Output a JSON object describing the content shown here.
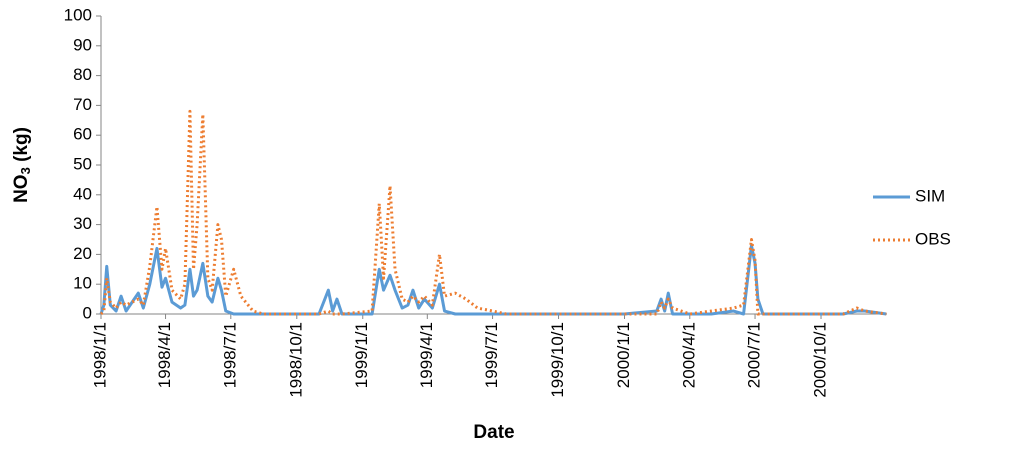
{
  "chart_data": {
    "type": "line",
    "y_label": [
      "NO",
      "3",
      " (kg)"
    ],
    "x_label": "Date",
    "x": [
      "1998/1/1",
      "1998/1/5",
      "1998/1/9",
      "1998/1/14",
      "1998/1/22",
      "1998/1/29",
      "1998/2/5",
      "1998/2/22",
      "1998/3/1",
      "1998/3/10",
      "1998/3/20",
      "1998/3/27",
      "1998/4/1",
      "1998/4/10",
      "1998/4/22",
      "1998/4/28",
      "1998/5/5",
      "1998/5/10",
      "1998/5/15",
      "1998/5/23",
      "1998/5/30",
      "1998/6/5",
      "1998/6/13",
      "1998/6/18",
      "1998/6/24",
      "1998/7/5",
      "1998/7/15",
      "1998/8/1",
      "1998/8/15",
      "1998/11/1",
      "1998/11/14",
      "1998/11/20",
      "1998/11/26",
      "1998/12/3",
      "1999/1/14",
      "1999/1/24",
      "1999/1/30",
      "1999/2/8",
      "1999/2/15",
      "1999/2/25",
      "1999/3/5",
      "1999/3/12",
      "1999/3/20",
      "1999/3/28",
      "1999/4/8",
      "1999/4/18",
      "1999/4/25",
      "1999/5/10",
      "1999/5/25",
      "1999/6/10",
      "1999/7/1",
      "1999/7/20",
      "2000/1/1",
      "2000/2/15",
      "2000/2/21",
      "2000/2/26",
      "2000/3/2",
      "2000/3/8",
      "2000/4/1",
      "2000/5/1",
      "2000/6/1",
      "2000/6/15",
      "2000/6/26",
      "2000/7/1",
      "2000/7/5",
      "2000/7/12",
      "2000/11/1",
      "2000/11/20",
      "2000/12/1",
      "2000/12/31"
    ],
    "series": [
      {
        "name": "SIM",
        "color": "#5b9bd5",
        "dash": "solid",
        "values": [
          0,
          3,
          16,
          3,
          1,
          6,
          1,
          7,
          2,
          10,
          22,
          9,
          12,
          4,
          2,
          3,
          15,
          6,
          8,
          17,
          6,
          4,
          12,
          8,
          1,
          0,
          0,
          0,
          0,
          0,
          8,
          1,
          5,
          0,
          0,
          15,
          8,
          13,
          8,
          2,
          3,
          8,
          2,
          5,
          2,
          10,
          1,
          0,
          0,
          0,
          0,
          0,
          0,
          1,
          5,
          1,
          7,
          0,
          0,
          0,
          1,
          0,
          23,
          17,
          5,
          0,
          0,
          1,
          1,
          0
        ]
      },
      {
        "name": "OBS",
        "color": "#ed7d31",
        "dash": "dotted",
        "values": [
          0,
          1,
          12,
          4,
          2,
          4,
          3,
          5,
          3,
          16,
          36,
          15,
          22,
          8,
          5,
          10,
          68,
          15,
          30,
          67,
          12,
          8,
          30,
          25,
          6,
          15,
          6,
          1,
          0,
          0,
          1,
          0,
          0,
          0,
          1,
          37,
          12,
          43,
          15,
          5,
          4,
          6,
          4,
          6,
          3,
          20,
          6,
          7,
          5,
          2,
          1,
          0,
          0,
          0,
          4,
          2,
          5,
          2,
          0,
          1,
          2,
          3,
          25,
          18,
          0,
          0,
          0,
          2,
          1,
          0
        ]
      }
    ],
    "xlim": [
      "1998/1/1",
      "2001/1/1"
    ],
    "xticks": [
      "1998/1/1",
      "1998/4/1",
      "1998/7/1",
      "1998/10/1",
      "1999/1/1",
      "1999/4/1",
      "1999/7/1",
      "1999/10/1",
      "2000/1/1",
      "2000/4/1",
      "2000/7/1",
      "2000/10/1"
    ],
    "ylim": [
      0,
      100
    ],
    "yticks": [
      0,
      10,
      20,
      30,
      40,
      50,
      60,
      70,
      80,
      90,
      100
    ],
    "legend": "right"
  }
}
